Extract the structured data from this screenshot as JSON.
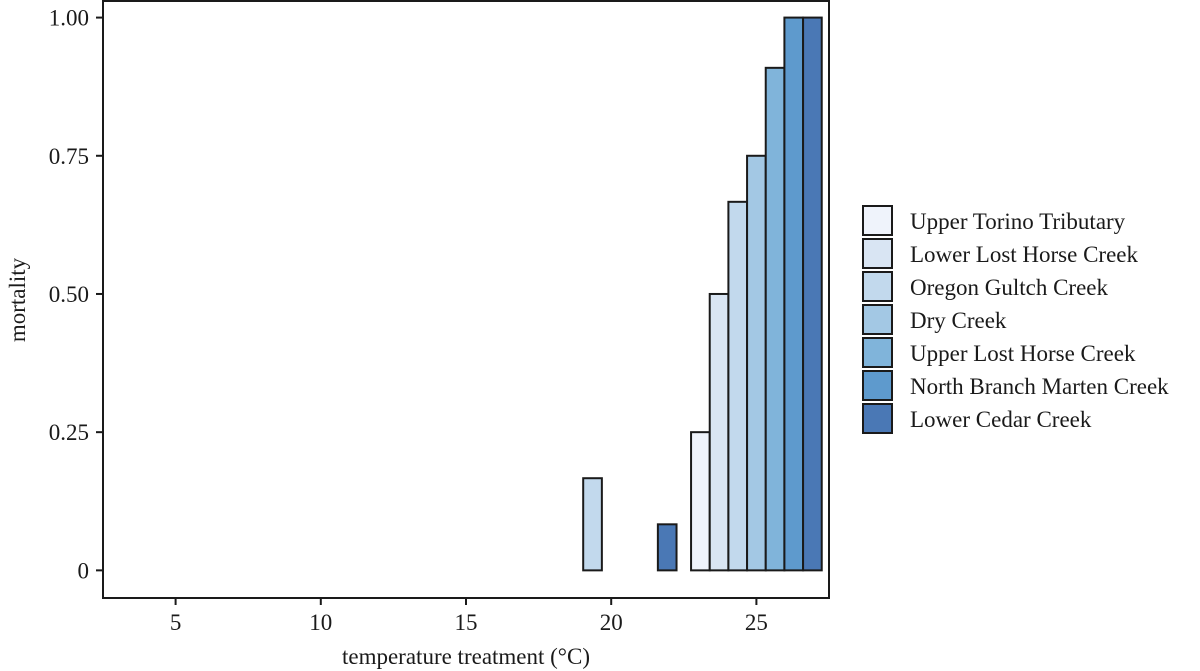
{
  "chart_data": {
    "type": "bar",
    "xlabel": "temperature treatment (°C)",
    "ylabel": "mortality",
    "ylim": [
      -0.05,
      1.03
    ],
    "xlim": [
      2.5,
      27.5
    ],
    "categories": [
      5,
      10,
      15,
      20,
      25
    ],
    "x_ticks": [
      "5",
      "10",
      "15",
      "20",
      "25"
    ],
    "y_ticks": [
      {
        "value": 0,
        "label": "0"
      },
      {
        "value": 0.25,
        "label": "0.25"
      },
      {
        "value": 0.5,
        "label": "0.50"
      },
      {
        "value": 0.75,
        "label": "0.75"
      },
      {
        "value": 1.0,
        "label": "1.00"
      }
    ],
    "grid": false,
    "legend_position": "right",
    "series": [
      {
        "name": "Upper Torino Tributary",
        "color": "#eff3fb",
        "values": [
          0,
          0,
          0,
          0,
          0.25
        ]
      },
      {
        "name": "Lower Lost Horse Creek",
        "color": "#d9e5f3",
        "values": [
          0,
          0,
          0,
          0,
          0.5
        ]
      },
      {
        "name": "Oregon Gultch Creek",
        "color": "#c2d9ed",
        "values": [
          0,
          0,
          0,
          0.1667,
          0.6667
        ]
      },
      {
        "name": "Dry Creek",
        "color": "#a3c8e4",
        "values": [
          0,
          0,
          0,
          0,
          0.75
        ]
      },
      {
        "name": "Upper Lost Horse Creek",
        "color": "#80b4da",
        "values": [
          0,
          0,
          0,
          0,
          0.9091
        ]
      },
      {
        "name": "North Branch Marten Creek",
        "color": "#5e9acd",
        "values": [
          0,
          0,
          0,
          0,
          1.0
        ]
      },
      {
        "name": "Lower Cedar Creek",
        "color": "#4a78b5",
        "values": [
          0,
          0,
          0,
          0.0833,
          1.0
        ]
      }
    ]
  }
}
